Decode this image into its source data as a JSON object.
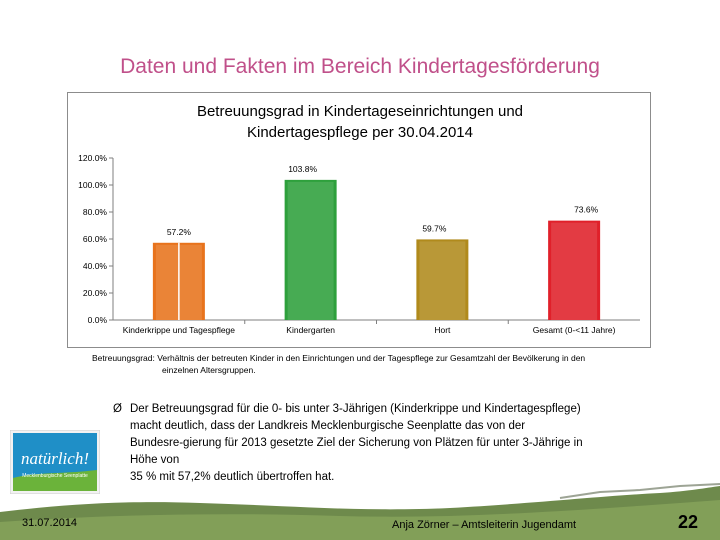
{
  "slide": {
    "title": "Daten und Fakten im Bereich Kindertagesförderung",
    "caption_line1": "Betreuungsgrad: Verhältnis der betreuten Kinder in den Einrichtungen und der Tagespflege zur Gesamtzahl der Bevölkerung in den",
    "caption_line2": "einzelnen Altersgruppen.",
    "bullet_symbol": "Ø",
    "bullet_lines": [
      "Der Betreuungsgrad für die 0- bis unter 3-Jährigen (Kinderkrippe und Kindertagespflege)",
      "macht deutlich, dass der Landkreis Mecklenburgische Seenplatte das von der",
      "Bundesre-gierung für 2013 gesetzte Ziel der Sicherung von Plätzen für unter 3-Jährige in",
      "Höhe von",
      "35 % mit 57,2% deutlich übertroffen hat."
    ],
    "date": "31.07.2014",
    "author": "Anja Zörner – Amtsleiterin Jugendamt",
    "page_number": "22",
    "logo": {
      "text": "natürlich!",
      "subtext": "Mecklenburgische Seenplatte",
      "colors": {
        "fill": "#1f8fc7",
        "frame": "#f2f2f2",
        "grass": "#6bb33a"
      }
    }
  },
  "chart_data": {
    "type": "bar",
    "title_lines": [
      "Betreuungsgrad in Kindertageseinrichtungen und",
      "Kindertagespflege per 30.04.2014"
    ],
    "categories": [
      "Kinderkrippe und Tagespflege",
      "Kindergarten",
      "Hort",
      "Gesamt (0-<11 Jahre)"
    ],
    "values": [
      57.2,
      103.8,
      59.7,
      73.6
    ],
    "value_labels": [
      "57.2%",
      "103.8%",
      "59.7%",
      "73.6%"
    ],
    "colors": [
      "#e8731c",
      "#2ea03c",
      "#b08a1c",
      "#e0202a"
    ],
    "yticks": [
      "0.0%",
      "20.0%",
      "40.0%",
      "60.0%",
      "80.0%",
      "100.0%",
      "120.0%"
    ],
    "ylim": [
      0,
      120
    ],
    "grid": false,
    "legend": "none"
  }
}
